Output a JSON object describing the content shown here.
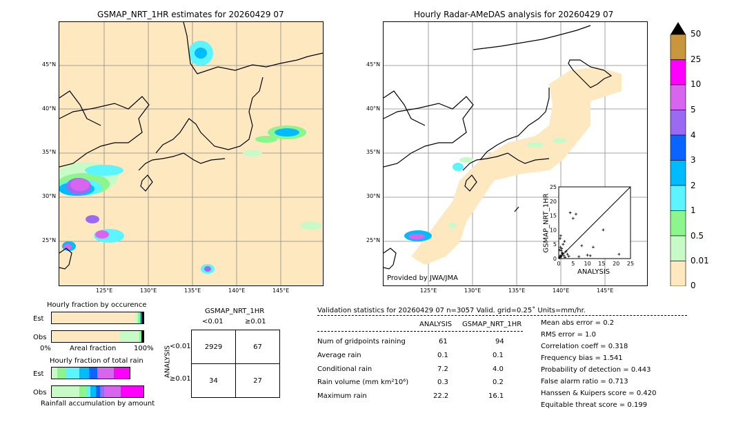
{
  "left_title": "GSMAP_NRT_1HR estimates for 20260429 07",
  "right_title": "Hourly Radar-AMeDAS analysis for 20260429 07",
  "lat_ticks": [
    "45°N",
    "40°N",
    "35°N",
    "30°N",
    "25°N"
  ],
  "lon_ticks": [
    "125°E",
    "130°E",
    "135°E",
    "140°E",
    "145°E"
  ],
  "credit": "Provided by JWA/JMA",
  "colorbar": {
    "labels": [
      "50",
      "25",
      "10",
      "5",
      "4",
      "3",
      "2",
      "1",
      "0.5",
      "0.01",
      "0"
    ],
    "colors": [
      "#c8963c",
      "#ff00ff",
      "#d865f0",
      "#9b6af5",
      "#0a64ff",
      "#00bcff",
      "#5cf5ff",
      "#8cf58c",
      "#c8fac8",
      "#fde8c0"
    ],
    "extend_color": "#000000"
  },
  "scatter": {
    "ylabel": "GSMAP_NRT_1HR",
    "xlabel": "ANALYSIS",
    "ticks": [
      "0",
      "5",
      "10",
      "15",
      "20",
      "25"
    ]
  },
  "fraction_occurrence": {
    "title": "Hourly fraction by occurence",
    "rows": [
      "Est",
      "Obs"
    ],
    "axis_left": "0%",
    "axis_mid": "Areal fraction",
    "axis_right": "100%"
  },
  "fraction_total": {
    "title": "Hourly fraction of total rain",
    "rows": [
      "Est",
      "Obs"
    ],
    "axis_label": "Rainfall accumulation by amount"
  },
  "contingency": {
    "title": "GSMAP_NRT_1HR",
    "col_headers": [
      "<0.01",
      "≥0.01"
    ],
    "row_label": "ANALYSIS",
    "row_headers": [
      "<0.01",
      "≥0.01"
    ],
    "cells": [
      [
        "2929",
        "67"
      ],
      [
        "34",
        "27"
      ]
    ]
  },
  "validation": {
    "header": "Validation statistics for 20260429 07  n=3057 Valid. grid=0.25˚ Units=mm/hr.",
    "col_analysis": "ANALYSIS",
    "col_gsmap": "GSMAP_NRT_1HR",
    "rows": [
      {
        "label": "Num of gridpoints raining",
        "analysis": "61",
        "gsmap": "94"
      },
      {
        "label": "Average rain",
        "analysis": "0.1",
        "gsmap": "0.1"
      },
      {
        "label": "Conditional rain",
        "analysis": "7.2",
        "gsmap": "4.0"
      },
      {
        "label": "Rain volume (mm km²10⁶)",
        "analysis": "0.3",
        "gsmap": "0.2"
      },
      {
        "label": "Maximum rain",
        "analysis": "22.2",
        "gsmap": "16.1"
      }
    ],
    "scores": [
      "Mean abs error =    0.2",
      "RMS error =    1.0",
      "Correlation coeff =  0.318",
      "Frequency bias =  1.541",
      "Probability of detection =  0.443",
      "False alarm ratio =  0.713",
      "Hanssen & Kuipers score =  0.420",
      "Equitable threat score =  0.199"
    ]
  },
  "chart_data": [
    {
      "type": "scatter",
      "xlabel": "ANALYSIS",
      "ylabel": "GSMAP_NRT_1HR",
      "xlim": [
        0,
        25
      ],
      "ylim": [
        0,
        25
      ],
      "x": [
        0.2,
        0.4,
        0.5,
        0.8,
        1.0,
        1.2,
        0.3,
        0.6,
        1.5,
        2.0,
        2.5,
        3.0,
        0.5,
        1.0,
        0.7,
        1.8,
        4.0,
        5.0,
        6.0,
        7.0,
        8.0,
        10.0,
        11.0,
        12.0,
        15.5,
        21.0,
        2.2,
        3.5,
        0.9,
        1.3
      ],
      "y": [
        0.3,
        0.5,
        1.0,
        0.6,
        1.2,
        2.0,
        3.0,
        4.0,
        5.0,
        6.0,
        2.5,
        1.5,
        7.0,
        3.5,
        8.0,
        1.0,
        16.0,
        14.0,
        15.5,
        0.7,
        4.5,
        1.2,
        1.0,
        4.0,
        10.0,
        1.5,
        0.4,
        0.8,
        2.8,
        1.8
      ]
    }
  ]
}
